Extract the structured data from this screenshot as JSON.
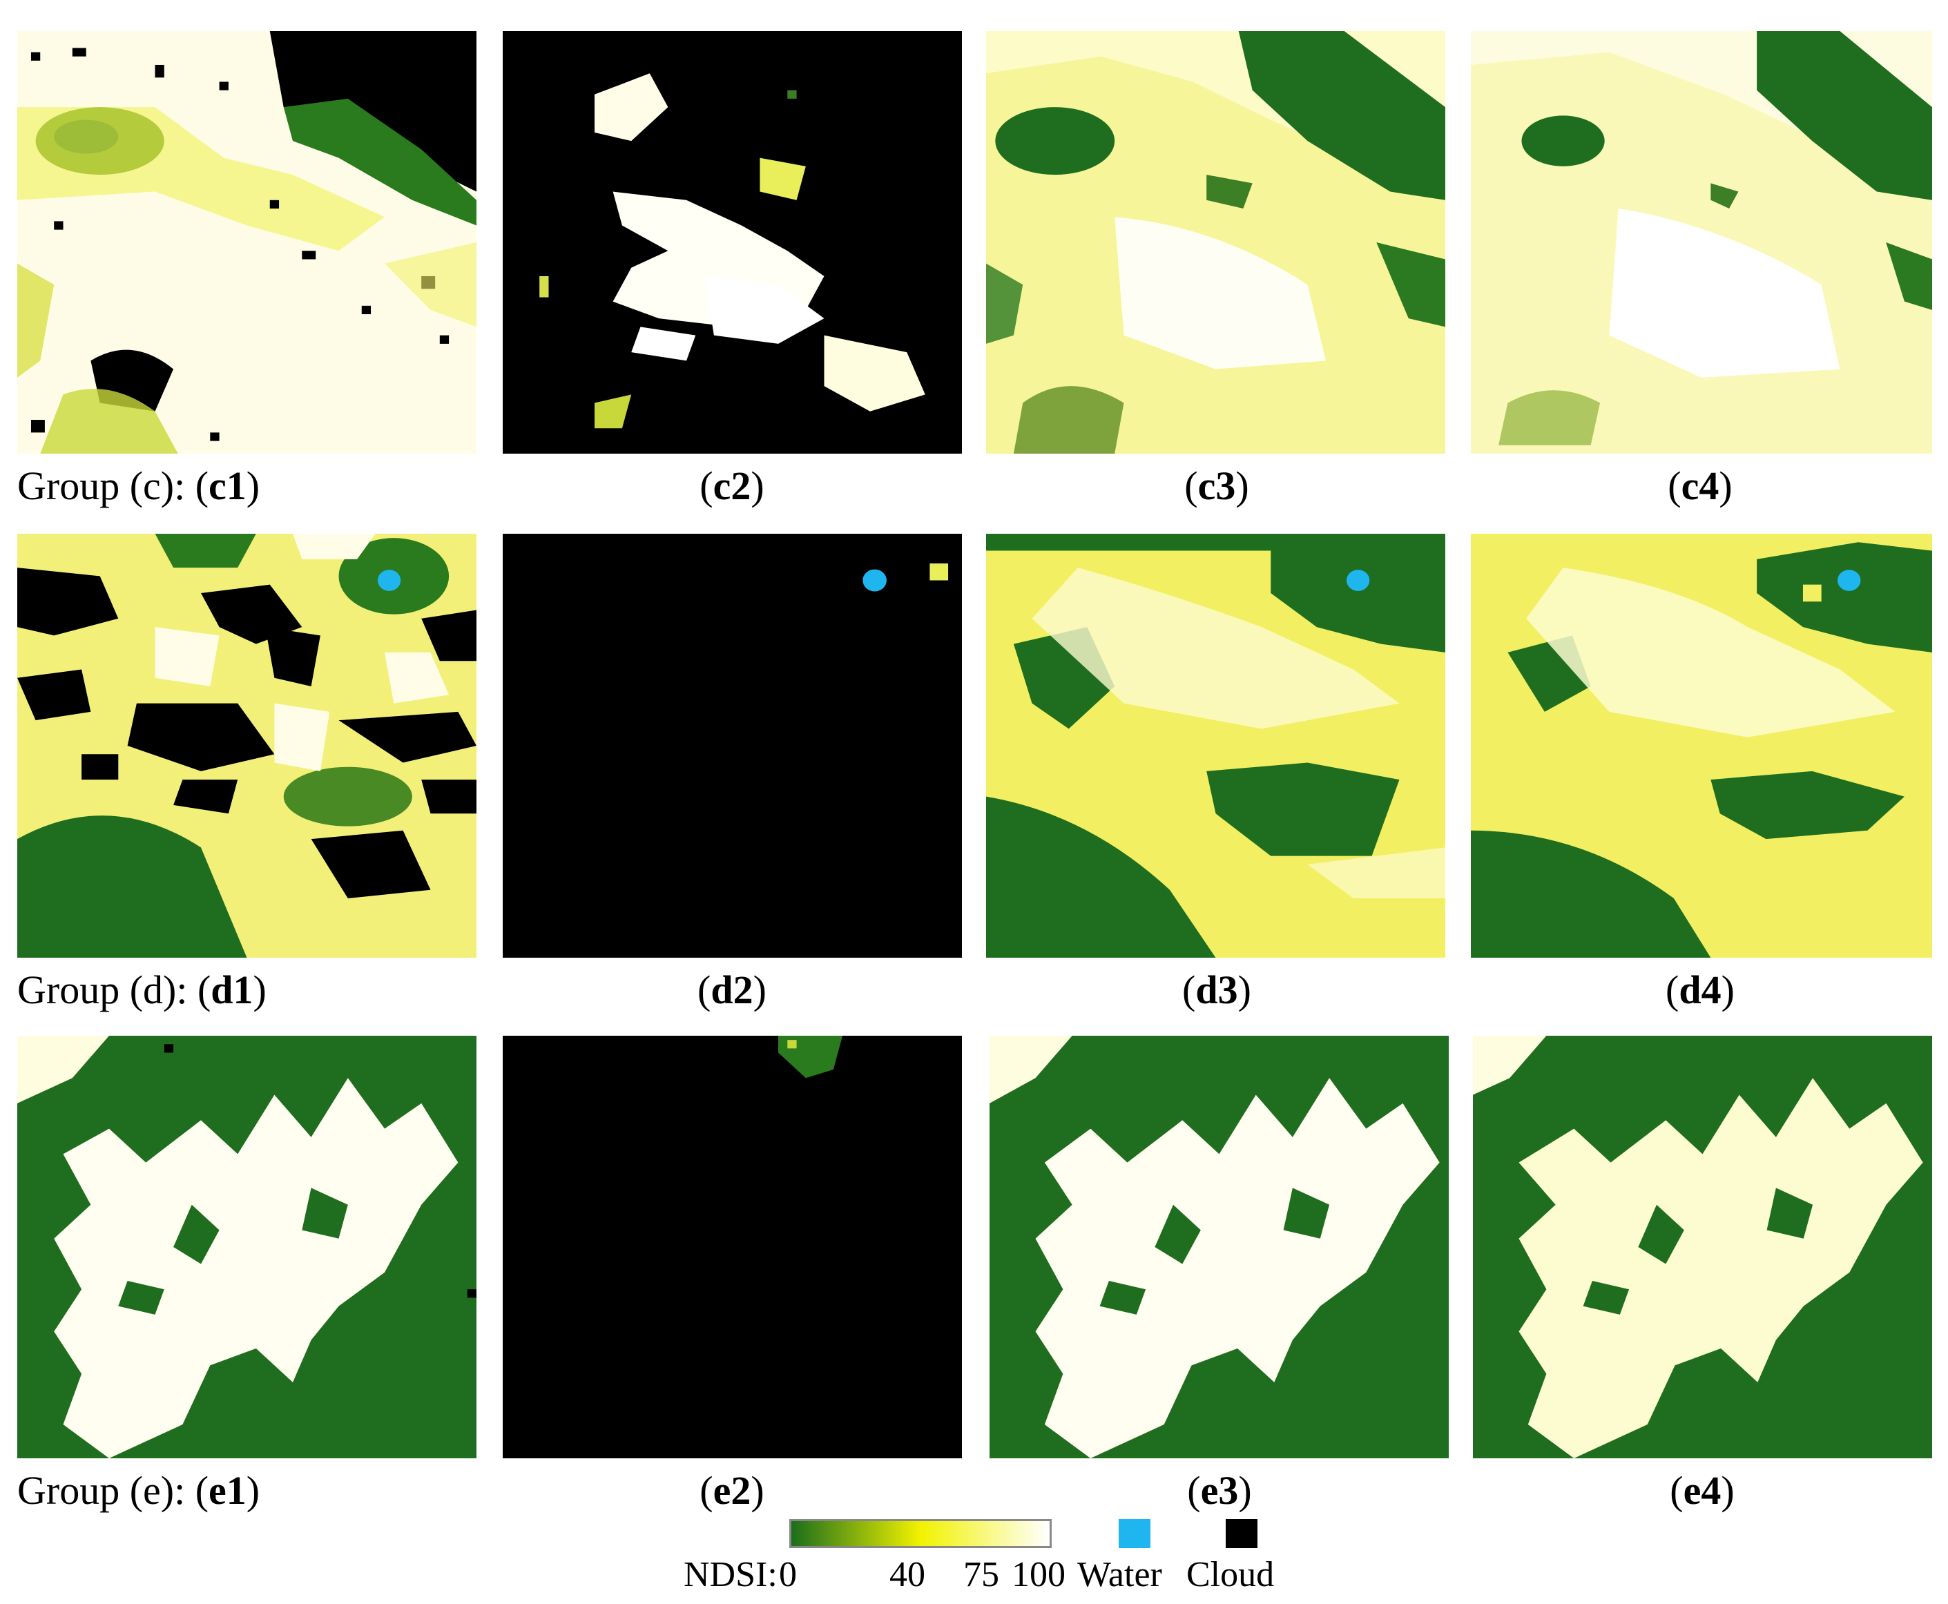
{
  "groups": [
    {
      "id": "c",
      "caption_prefix": "Group (c): ",
      "panels": [
        {
          "label": "c1"
        },
        {
          "label": "c2"
        },
        {
          "label": "c3"
        },
        {
          "label": "c4"
        }
      ]
    },
    {
      "id": "d",
      "caption_prefix": "Group (d): ",
      "panels": [
        {
          "label": "d1"
        },
        {
          "label": "d2"
        },
        {
          "label": "d3"
        },
        {
          "label": "d4"
        }
      ]
    },
    {
      "id": "e",
      "caption_prefix": "Group (e): ",
      "panels": [
        {
          "label": "e1"
        },
        {
          "label": "e2"
        },
        {
          "label": "e3"
        },
        {
          "label": "e4"
        }
      ]
    }
  ],
  "legend": {
    "prefix": "NDSI:",
    "ticks": [
      "0",
      "40",
      "75",
      "100"
    ],
    "gradient_colors": [
      "#1b6e1b",
      "#f2f200",
      "#ffffff"
    ],
    "water_label": "Water",
    "water_color": "#1fb6f0",
    "cloud_label": "Cloud",
    "cloud_color": "#000000"
  },
  "colors": {
    "dark_green": "#1d6e1d",
    "yellow": "#eef01a",
    "pale": "#fdfbd0",
    "white": "#ffffff",
    "cloud": "#000000",
    "water": "#1fb6f0"
  }
}
